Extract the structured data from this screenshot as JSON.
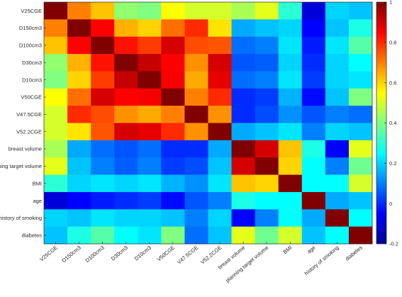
{
  "chart_data": {
    "type": "heatmap",
    "title": "",
    "xlabel": "",
    "ylabel": "",
    "labels": [
      "V25CGE",
      "D150cm3",
      "D100cm3",
      "D30cm3",
      "D10cm3",
      "V50CGE",
      "V47.5CGE",
      "V52.2CGE",
      "breast volume",
      "planning target volume",
      "BMI",
      "age",
      "history of smoking",
      "diabetes"
    ],
    "matrix": [
      [
        1.0,
        0.7,
        0.62,
        0.42,
        0.4,
        0.55,
        0.5,
        0.5,
        0.45,
        0.52,
        0.3,
        -0.1,
        0.2,
        0.18
      ],
      [
        0.7,
        1.0,
        0.85,
        0.64,
        0.6,
        0.72,
        0.8,
        0.58,
        0.15,
        0.18,
        0.2,
        -0.05,
        0.18,
        0.28
      ],
      [
        0.62,
        0.85,
        1.0,
        0.83,
        0.78,
        0.9,
        0.76,
        0.75,
        0.08,
        0.1,
        0.22,
        -0.02,
        0.22,
        0.35
      ],
      [
        0.42,
        0.64,
        0.83,
        1.0,
        0.92,
        0.85,
        0.68,
        0.9,
        0.05,
        0.06,
        0.2,
        0.0,
        0.2,
        0.25
      ],
      [
        0.4,
        0.6,
        0.78,
        0.92,
        1.0,
        0.86,
        0.65,
        0.88,
        0.08,
        0.1,
        0.22,
        0.02,
        0.2,
        0.22
      ],
      [
        0.55,
        0.72,
        0.9,
        0.85,
        0.86,
        1.0,
        0.7,
        0.8,
        0.0,
        0.02,
        0.16,
        -0.04,
        0.18,
        0.4
      ],
      [
        0.5,
        0.8,
        0.76,
        0.68,
        0.65,
        0.7,
        1.0,
        0.68,
        0.0,
        0.04,
        0.12,
        0.05,
        0.1,
        0.08
      ],
      [
        0.5,
        0.58,
        0.75,
        0.9,
        0.88,
        0.8,
        0.68,
        1.0,
        0.15,
        0.18,
        0.22,
        0.1,
        0.2,
        0.18
      ],
      [
        0.45,
        0.15,
        0.08,
        0.05,
        0.08,
        0.0,
        0.0,
        0.15,
        1.0,
        0.9,
        0.62,
        0.28,
        -0.05,
        0.52
      ],
      [
        0.52,
        0.18,
        0.1,
        0.06,
        0.1,
        0.02,
        0.04,
        0.18,
        0.9,
        1.0,
        0.6,
        0.25,
        0.1,
        0.38
      ],
      [
        0.3,
        0.2,
        0.22,
        0.2,
        0.22,
        0.16,
        0.12,
        0.22,
        0.62,
        0.6,
        1.0,
        0.25,
        0.25,
        0.5
      ],
      [
        -0.1,
        -0.05,
        -0.02,
        0.0,
        0.02,
        -0.04,
        0.05,
        0.1,
        0.28,
        0.25,
        0.25,
        1.0,
        0.15,
        0.18
      ],
      [
        0.2,
        0.18,
        0.22,
        0.2,
        0.2,
        0.18,
        0.1,
        0.2,
        -0.05,
        0.1,
        0.25,
        0.15,
        1.0,
        0.25
      ],
      [
        0.18,
        0.28,
        0.35,
        0.25,
        0.22,
        0.4,
        0.08,
        0.18,
        0.52,
        0.38,
        0.5,
        0.18,
        0.25,
        1.0
      ]
    ],
    "colorbar": {
      "colormap": "jet",
      "range": [
        -0.2,
        1.0
      ],
      "ticks": [
        -0.2,
        0,
        0.2,
        0.4,
        0.6,
        0.8,
        1
      ],
      "tick_labels": [
        "-0.2",
        "0",
        "0.2",
        "0.4",
        "0.6",
        "0.8",
        "1"
      ]
    }
  }
}
